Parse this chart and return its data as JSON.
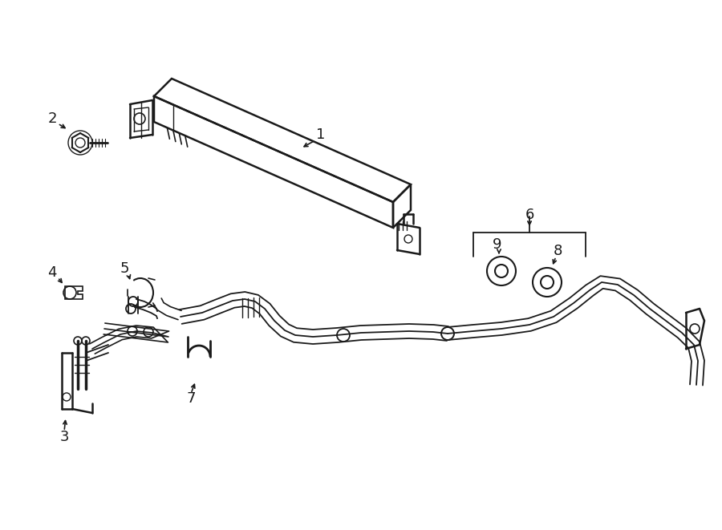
{
  "bg_color": "#ffffff",
  "line_color": "#1a1a1a",
  "figsize": [
    9.0,
    6.61
  ],
  "dpi": 100,
  "lw": 1.4,
  "lw_thick": 1.8
}
